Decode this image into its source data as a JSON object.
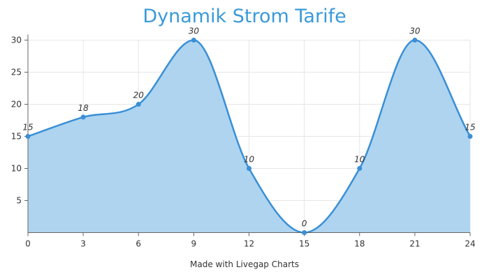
{
  "page": {
    "title": "Dynamik Strom Tarife",
    "footer": "Made with Livegap Charts"
  },
  "colors": {
    "title": "#3a9ad9",
    "line": "#3a8fd6",
    "area": "#aed4ef",
    "point": "#3a8fd6",
    "grid": "#e6e6e6"
  },
  "chart_data": {
    "type": "area",
    "title": "Dynamik Strom Tarife",
    "categories": [
      "0",
      "3",
      "6",
      "9",
      "12",
      "15",
      "18",
      "21",
      "24"
    ],
    "series": [
      {
        "values": [
          15,
          18,
          20,
          30,
          10,
          0,
          10,
          30,
          15
        ]
      }
    ],
    "y_ticks": [
      5,
      10,
      15,
      20,
      25,
      30
    ],
    "ylim": [
      0,
      30
    ],
    "grid": true,
    "data_labels": true,
    "smooth": true
  }
}
